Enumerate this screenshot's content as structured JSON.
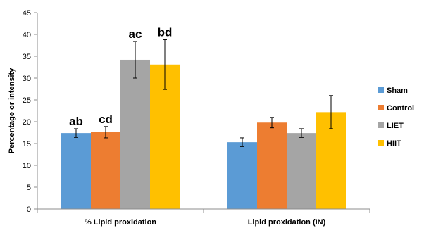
{
  "chart_data": {
    "type": "bar",
    "title": "",
    "xlabel": "",
    "ylabel": "Percentage or intensity",
    "ylim": [
      0,
      45
    ],
    "yticks": [
      0,
      5,
      10,
      15,
      20,
      25,
      30,
      35,
      40,
      45
    ],
    "grid": false,
    "legend_position": "right",
    "categories": [
      "% Lipid proxidation",
      "Lipid proxidation (IN)"
    ],
    "series": [
      {
        "name": "Sham",
        "color": "#5B9BD5",
        "values": [
          17.4,
          15.3
        ],
        "errors": [
          1.0,
          1.0
        ],
        "annotations": [
          "ab",
          ""
        ]
      },
      {
        "name": "Control",
        "color": "#ED7D31",
        "values": [
          17.6,
          19.8
        ],
        "errors": [
          1.3,
          1.2
        ],
        "annotations": [
          "cd",
          ""
        ]
      },
      {
        "name": "LIET",
        "color": "#A5A5A5",
        "values": [
          34.2,
          17.4
        ],
        "errors": [
          4.2,
          1.0
        ],
        "annotations": [
          "ac",
          ""
        ]
      },
      {
        "name": "HIIT",
        "color": "#FFC000",
        "values": [
          33.1,
          22.2
        ],
        "errors": [
          5.7,
          3.8
        ],
        "annotations": [
          "bd",
          ""
        ]
      }
    ]
  }
}
